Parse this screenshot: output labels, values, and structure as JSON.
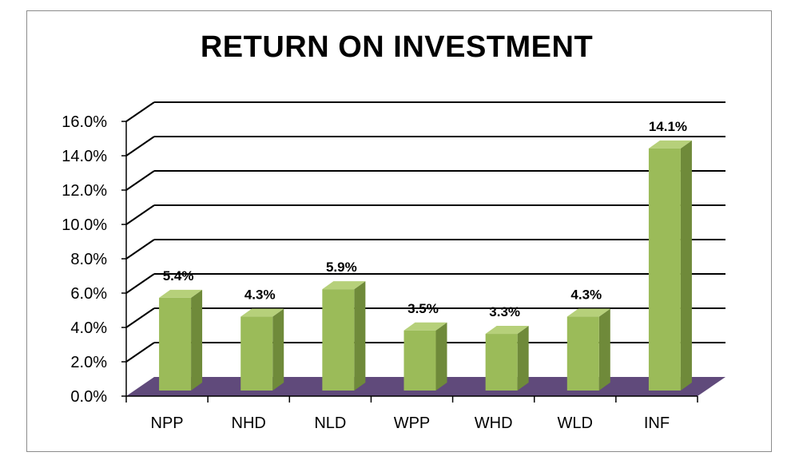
{
  "chart_data": {
    "type": "bar",
    "title": "RETURN ON INVESTMENT",
    "xlabel": "",
    "ylabel": "",
    "categories": [
      "NPP",
      "NHD",
      "NLD",
      "WPP",
      "WHD",
      "WLD",
      "INF"
    ],
    "values": [
      5.4,
      4.3,
      5.9,
      3.5,
      3.3,
      4.3,
      14.1
    ],
    "data_labels": [
      "5.4%",
      "4.3%",
      "5.9%",
      "3.5%",
      "3.3%",
      "4.3%",
      "14.1%"
    ],
    "ylim": [
      0,
      16
    ],
    "y_ticks": [
      0,
      2,
      4,
      6,
      8,
      10,
      12,
      14,
      16
    ],
    "y_tick_labels": [
      "0.0%",
      "2.0%",
      "4.0%",
      "6.0%",
      "8.0%",
      "10.0%",
      "12.0%",
      "14.0%",
      "16.0%"
    ],
    "grid": true,
    "legend": "none",
    "style": "3d-column",
    "colors": {
      "bar_front": "#9bbb59",
      "bar_side": "#6f8a3a",
      "bar_top": "#b6d07a",
      "floor": "#604a7b",
      "gridline": "#000000"
    }
  }
}
